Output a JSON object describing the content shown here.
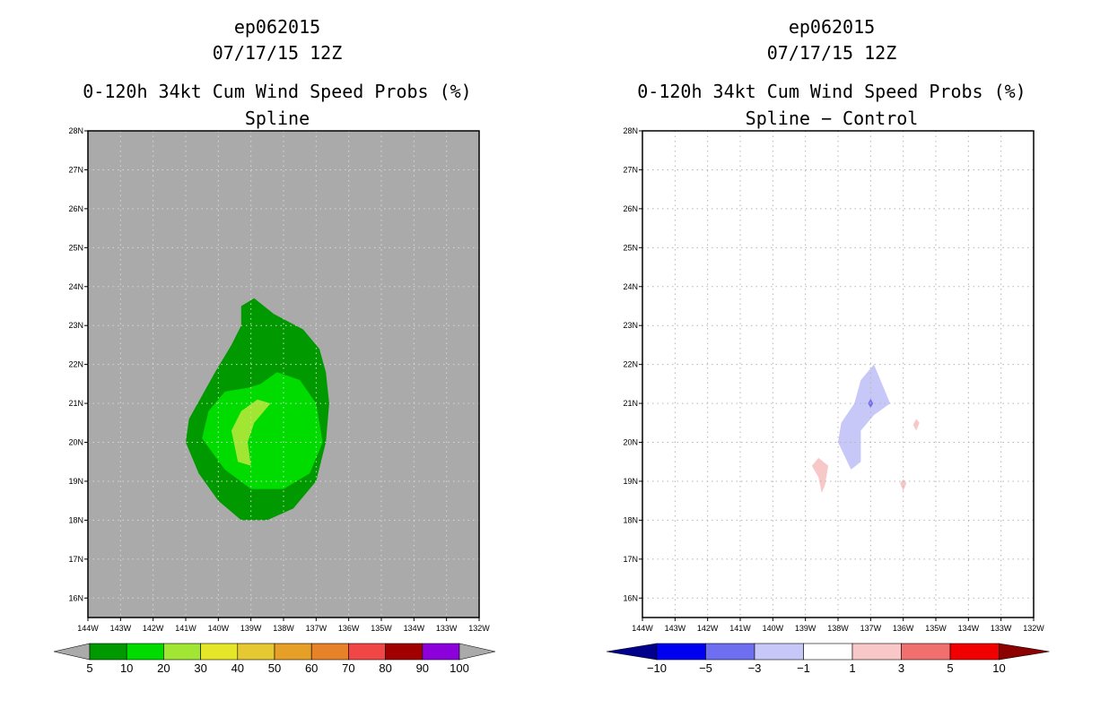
{
  "chart_data": [
    {
      "type": "filled-contour-map",
      "storm_id": "ep062015",
      "datetime": "07/17/15 12Z",
      "title": "0-120h 34kt Cum Wind Speed Probs (%)",
      "subtitle": "Spline",
      "xlim": [
        -144,
        -132
      ],
      "ylim": [
        15.5,
        28
      ],
      "xticks": [
        -144,
        -143,
        -142,
        -141,
        -140,
        -139,
        -138,
        -137,
        -136,
        -135,
        -134,
        -133,
        -132
      ],
      "yticks": [
        16,
        17,
        18,
        19,
        20,
        21,
        22,
        23,
        24,
        25,
        26,
        27,
        28
      ],
      "xtick_labels": [
        "144W",
        "143W",
        "142W",
        "141W",
        "140W",
        "139W",
        "138W",
        "137W",
        "136W",
        "135W",
        "134W",
        "133W",
        "132W"
      ],
      "ytick_labels": [
        "16N",
        "17N",
        "18N",
        "19N",
        "20N",
        "21N",
        "22N",
        "23N",
        "24N",
        "25N",
        "26N",
        "27N",
        "28N"
      ],
      "background_color": "#aaaaaa",
      "colorbar": {
        "labels": [
          "5",
          "10",
          "20",
          "30",
          "40",
          "50",
          "60",
          "70",
          "80",
          "90",
          "100"
        ],
        "colors": [
          "#009a00",
          "#00dc00",
          "#a0e632",
          "#e6e628",
          "#e6c832",
          "#e6a028",
          "#e68228",
          "#f04646",
          "#a00000",
          "#8c00dc"
        ]
      },
      "contours": [
        {
          "level": "5-10",
          "color": "#009a00",
          "points": [
            [
              -139.3,
              23.5
            ],
            [
              -138.9,
              23.7
            ],
            [
              -138.3,
              23.3
            ],
            [
              -137.4,
              22.9
            ],
            [
              -136.9,
              22.4
            ],
            [
              -136.7,
              21.8
            ],
            [
              -136.6,
              21.0
            ],
            [
              -136.7,
              20.0
            ],
            [
              -137.0,
              19.0
            ],
            [
              -137.7,
              18.3
            ],
            [
              -138.5,
              18.0
            ],
            [
              -139.3,
              18.0
            ],
            [
              -140.0,
              18.5
            ],
            [
              -140.6,
              19.2
            ],
            [
              -141.0,
              20.0
            ],
            [
              -140.9,
              20.6
            ],
            [
              -140.5,
              21.2
            ],
            [
              -140.1,
              21.8
            ],
            [
              -139.6,
              22.5
            ],
            [
              -139.3,
              23.0
            ]
          ]
        },
        {
          "level": "10-20",
          "color": "#00dc00",
          "points": [
            [
              -139.1,
              21.4
            ],
            [
              -138.7,
              21.5
            ],
            [
              -138.2,
              21.8
            ],
            [
              -137.5,
              21.6
            ],
            [
              -137.0,
              21.0
            ],
            [
              -136.8,
              20.0
            ],
            [
              -137.2,
              19.2
            ],
            [
              -138.0,
              18.8
            ],
            [
              -139.0,
              18.8
            ],
            [
              -139.8,
              19.3
            ],
            [
              -140.5,
              20.1
            ],
            [
              -140.3,
              20.8
            ],
            [
              -139.8,
              21.3
            ]
          ]
        },
        {
          "level": "20-30",
          "color": "#a0e632",
          "points": [
            [
              -139.3,
              20.8
            ],
            [
              -138.8,
              21.1
            ],
            [
              -138.4,
              21.0
            ],
            [
              -138.9,
              20.5
            ],
            [
              -139.1,
              20.0
            ],
            [
              -139.0,
              19.4
            ],
            [
              -139.4,
              19.5
            ],
            [
              -139.6,
              20.3
            ]
          ]
        }
      ]
    },
    {
      "type": "filled-contour-map",
      "storm_id": "ep062015",
      "datetime": "07/17/15 12Z",
      "title": "0-120h 34kt Cum Wind Speed Probs (%)",
      "subtitle": "Spline − Control",
      "xlim": [
        -144,
        -132
      ],
      "ylim": [
        15.5,
        28
      ],
      "xticks": [
        -144,
        -143,
        -142,
        -141,
        -140,
        -139,
        -138,
        -137,
        -136,
        -135,
        -134,
        -133,
        -132
      ],
      "yticks": [
        16,
        17,
        18,
        19,
        20,
        21,
        22,
        23,
        24,
        25,
        26,
        27,
        28
      ],
      "xtick_labels": [
        "144W",
        "143W",
        "142W",
        "141W",
        "140W",
        "139W",
        "138W",
        "137W",
        "136W",
        "135W",
        "134W",
        "133W",
        "132W"
      ],
      "ytick_labels": [
        "16N",
        "17N",
        "18N",
        "19N",
        "20N",
        "21N",
        "22N",
        "23N",
        "24N",
        "25N",
        "26N",
        "27N",
        "28N"
      ],
      "background_color": "#ffffff",
      "colorbar": {
        "labels": [
          "−10",
          "−5",
          "−3",
          "−1",
          "1",
          "3",
          "5",
          "10"
        ],
        "colors": [
          "#0000f0",
          "#6e6ef0",
          "#c8c8f8",
          "#ffffff",
          "#f8c8c8",
          "#f07070",
          "#f00000"
        ],
        "end_colors": [
          "#00008c",
          "#8c0000"
        ]
      },
      "contours": [
        {
          "level": "-3 to -1",
          "color": "#c8c8f8",
          "points": [
            [
              -136.9,
              22.0
            ],
            [
              -137.3,
              21.6
            ],
            [
              -137.5,
              21.0
            ],
            [
              -137.9,
              20.5
            ],
            [
              -138.0,
              20.0
            ],
            [
              -137.6,
              19.3
            ],
            [
              -137.3,
              19.5
            ],
            [
              -137.3,
              20.3
            ],
            [
              -136.9,
              20.7
            ],
            [
              -136.4,
              21.0
            ],
            [
              -136.6,
              21.4
            ]
          ]
        },
        {
          "level": "-5 to -3",
          "color": "#6e6ef0",
          "points": [
            [
              -137.0,
              21.12
            ],
            [
              -137.08,
              21.0
            ],
            [
              -137.0,
              20.88
            ],
            [
              -136.92,
              21.0
            ]
          ]
        },
        {
          "level": "1 to 3",
          "color": "#f8c8c8",
          "points": [
            [
              -138.6,
              19.6
            ],
            [
              -138.3,
              19.4
            ],
            [
              -138.4,
              18.9
            ],
            [
              -138.5,
              18.7
            ],
            [
              -138.6,
              19.1
            ],
            [
              -138.8,
              19.4
            ]
          ]
        },
        {
          "level": "1 to 3",
          "color": "#f8c8c8",
          "points": [
            [
              -135.6,
              20.6
            ],
            [
              -135.5,
              20.5
            ],
            [
              -135.6,
              20.3
            ],
            [
              -135.7,
              20.45
            ]
          ]
        },
        {
          "level": "1 to 3",
          "color": "#f8c8c8",
          "points": [
            [
              -136.0,
              19.05
            ],
            [
              -135.9,
              18.95
            ],
            [
              -136.0,
              18.75
            ],
            [
              -136.1,
              18.95
            ]
          ]
        }
      ]
    }
  ]
}
